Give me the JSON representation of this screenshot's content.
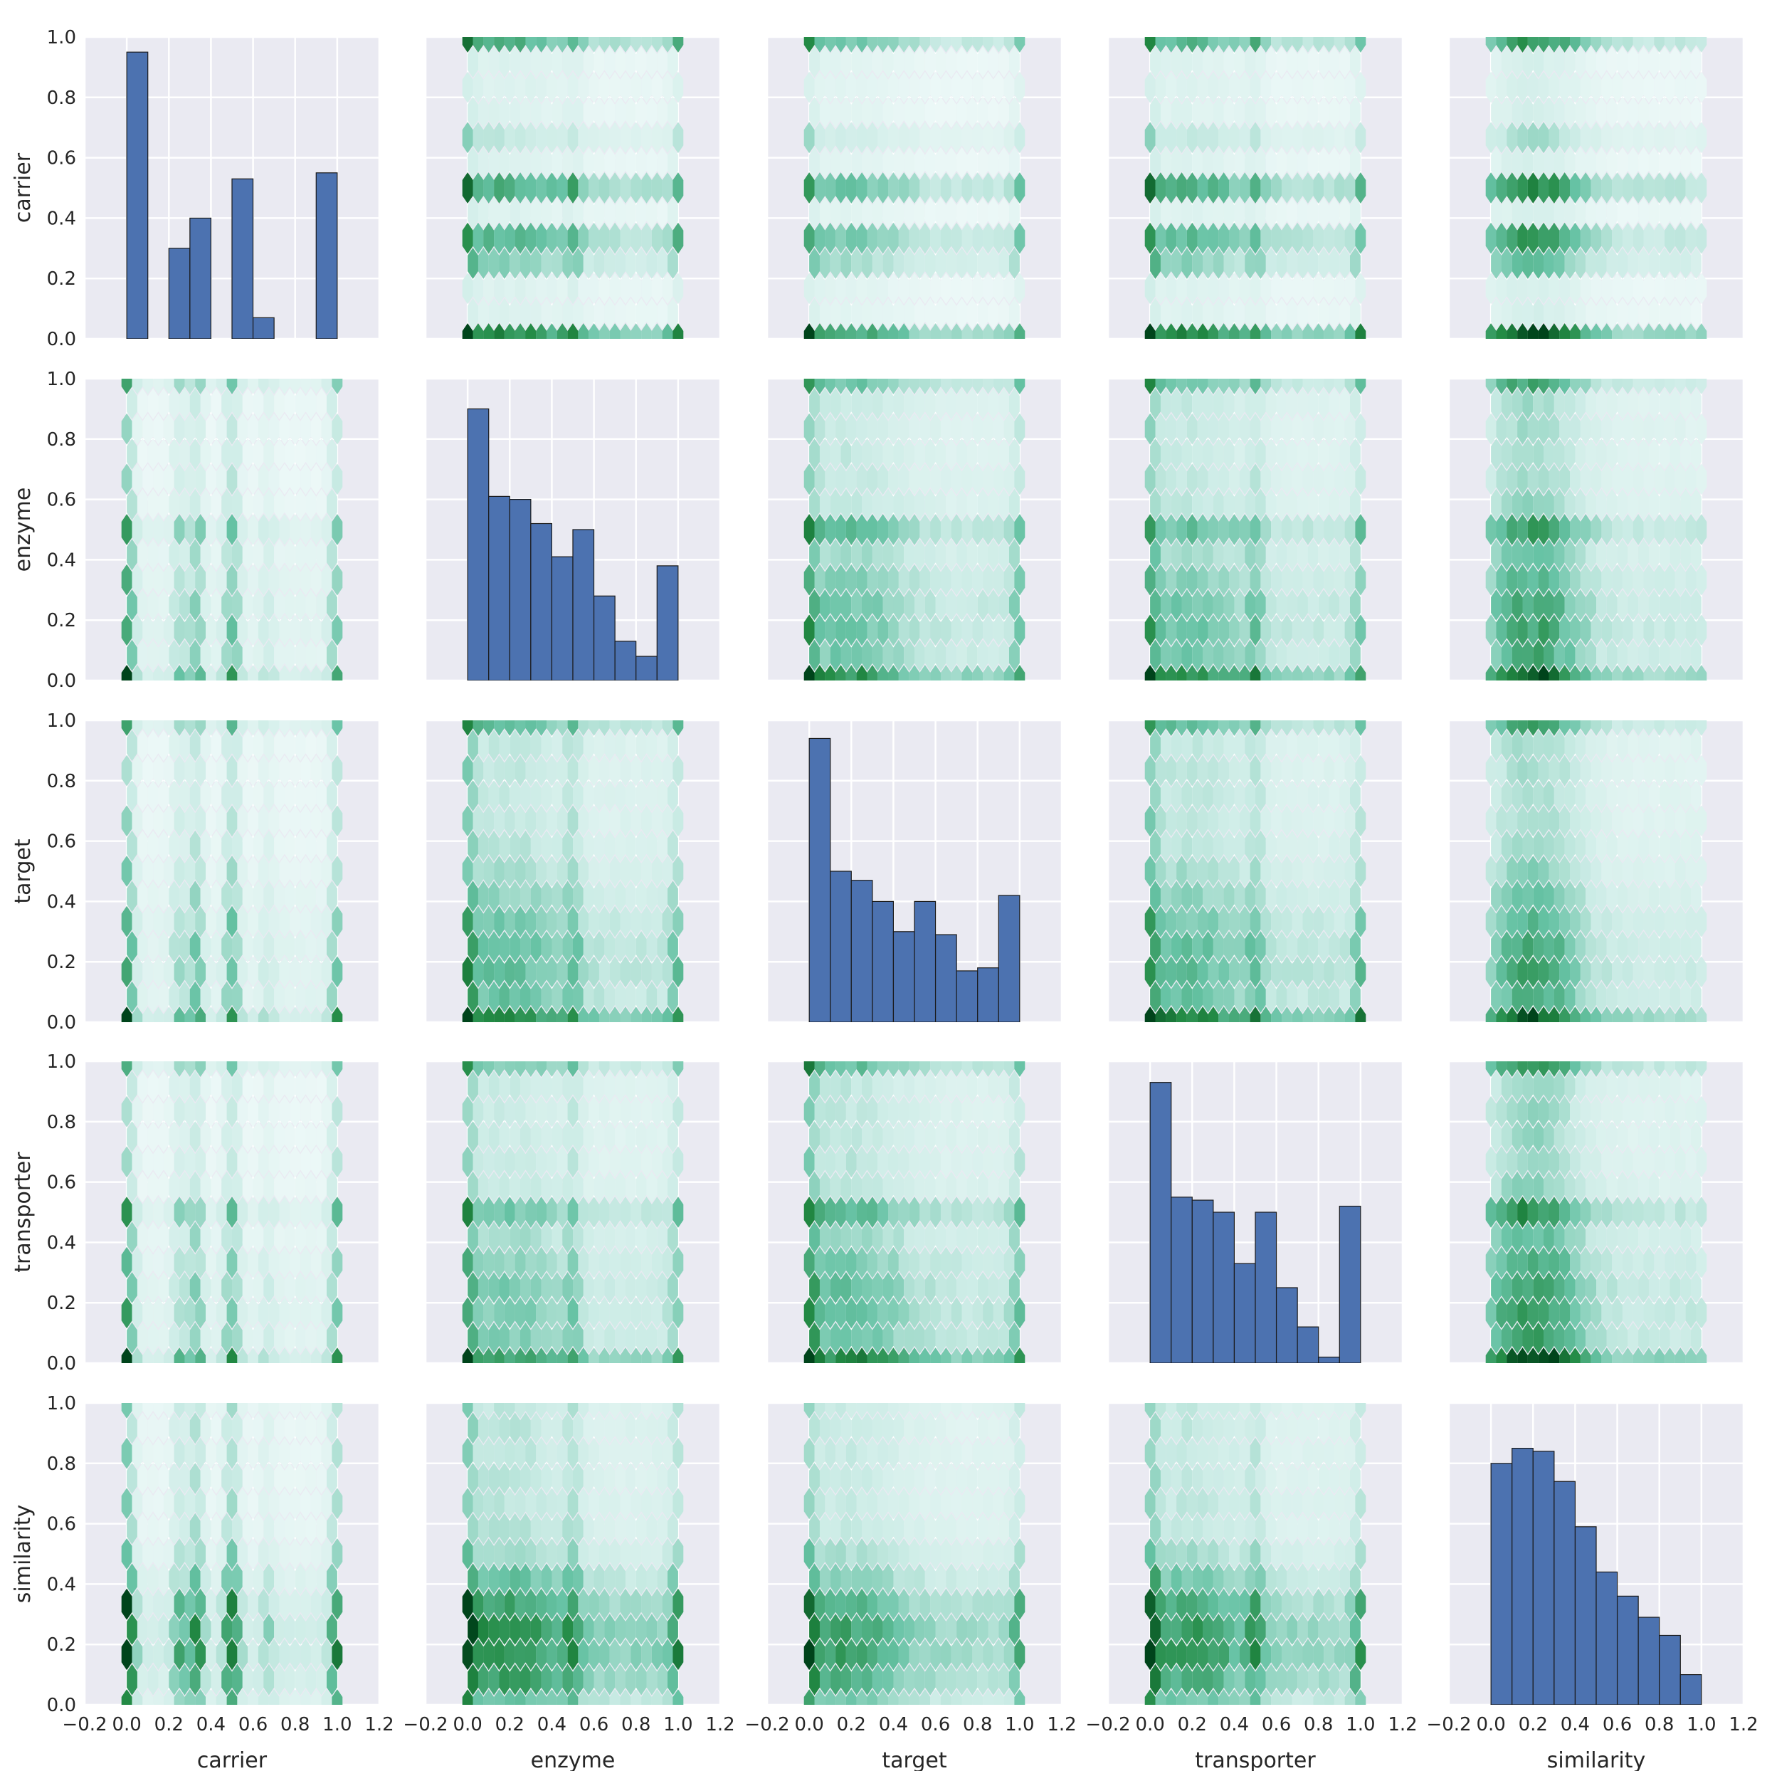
{
  "chart_data": {
    "type": "pairgrid",
    "style": "seaborn darkgrid",
    "variables": [
      "carrier",
      "enzyme",
      "target",
      "transporter",
      "similarity"
    ],
    "diagonal": "histogram",
    "off_diagonal": "hexbin",
    "hist_color": "#4c72b0",
    "hexbin_colormap": [
      "#f7fcfd",
      "#ccece6",
      "#66c2a4",
      "#238b45",
      "#00441b"
    ],
    "background_color": "#eaeaf2",
    "grid": true,
    "xlim": [
      -0.2,
      1.2
    ],
    "ylim": [
      0.0,
      1.0
    ],
    "x_ticks": [
      "−0.2",
      "0.0",
      "0.2",
      "0.4",
      "0.6",
      "0.8",
      "1.0",
      "1.2"
    ],
    "x_tick_values": [
      -0.2,
      0.0,
      0.2,
      0.4,
      0.6,
      0.8,
      1.0,
      1.2
    ],
    "y_ticks": [
      "0.0",
      "0.2",
      "0.4",
      "0.6",
      "0.8",
      "1.0"
    ],
    "y_tick_values": [
      0.0,
      0.2,
      0.4,
      0.6,
      0.8,
      1.0
    ],
    "histograms": {
      "carrier": [
        {
          "x0": 0.0,
          "x1": 0.1,
          "h": 0.95
        },
        {
          "x0": 0.2,
          "x1": 0.3,
          "h": 0.3
        },
        {
          "x0": 0.3,
          "x1": 0.4,
          "h": 0.4
        },
        {
          "x0": 0.5,
          "x1": 0.6,
          "h": 0.53
        },
        {
          "x0": 0.6,
          "x1": 0.7,
          "h": 0.07
        },
        {
          "x0": 0.9,
          "x1": 1.0,
          "h": 0.55
        }
      ],
      "enzyme": [
        {
          "x0": 0.0,
          "x1": 0.1,
          "h": 0.9
        },
        {
          "x0": 0.1,
          "x1": 0.2,
          "h": 0.61
        },
        {
          "x0": 0.2,
          "x1": 0.3,
          "h": 0.6
        },
        {
          "x0": 0.3,
          "x1": 0.4,
          "h": 0.52
        },
        {
          "x0": 0.4,
          "x1": 0.5,
          "h": 0.41
        },
        {
          "x0": 0.5,
          "x1": 0.6,
          "h": 0.5
        },
        {
          "x0": 0.6,
          "x1": 0.7,
          "h": 0.28
        },
        {
          "x0": 0.7,
          "x1": 0.8,
          "h": 0.13
        },
        {
          "x0": 0.8,
          "x1": 0.9,
          "h": 0.08
        },
        {
          "x0": 0.9,
          "x1": 1.0,
          "h": 0.38
        }
      ],
      "target": [
        {
          "x0": 0.0,
          "x1": 0.1,
          "h": 0.94
        },
        {
          "x0": 0.1,
          "x1": 0.2,
          "h": 0.5
        },
        {
          "x0": 0.2,
          "x1": 0.3,
          "h": 0.47
        },
        {
          "x0": 0.3,
          "x1": 0.4,
          "h": 0.4
        },
        {
          "x0": 0.4,
          "x1": 0.5,
          "h": 0.3
        },
        {
          "x0": 0.5,
          "x1": 0.6,
          "h": 0.4
        },
        {
          "x0": 0.6,
          "x1": 0.7,
          "h": 0.29
        },
        {
          "x0": 0.7,
          "x1": 0.8,
          "h": 0.17
        },
        {
          "x0": 0.8,
          "x1": 0.9,
          "h": 0.18
        },
        {
          "x0": 0.9,
          "x1": 1.0,
          "h": 0.42
        }
      ],
      "transporter": [
        {
          "x0": 0.0,
          "x1": 0.1,
          "h": 0.93
        },
        {
          "x0": 0.1,
          "x1": 0.2,
          "h": 0.55
        },
        {
          "x0": 0.2,
          "x1": 0.3,
          "h": 0.54
        },
        {
          "x0": 0.3,
          "x1": 0.4,
          "h": 0.5
        },
        {
          "x0": 0.4,
          "x1": 0.5,
          "h": 0.33
        },
        {
          "x0": 0.5,
          "x1": 0.6,
          "h": 0.5
        },
        {
          "x0": 0.6,
          "x1": 0.7,
          "h": 0.25
        },
        {
          "x0": 0.7,
          "x1": 0.8,
          "h": 0.12
        },
        {
          "x0": 0.8,
          "x1": 0.9,
          "h": 0.02
        },
        {
          "x0": 0.9,
          "x1": 1.0,
          "h": 0.52
        }
      ],
      "similarity": [
        {
          "x0": 0.0,
          "x1": 0.1,
          "h": 0.8
        },
        {
          "x0": 0.1,
          "x1": 0.2,
          "h": 0.85
        },
        {
          "x0": 0.2,
          "x1": 0.3,
          "h": 0.84
        },
        {
          "x0": 0.3,
          "x1": 0.4,
          "h": 0.74
        },
        {
          "x0": 0.4,
          "x1": 0.5,
          "h": 0.59
        },
        {
          "x0": 0.5,
          "x1": 0.6,
          "h": 0.44
        },
        {
          "x0": 0.6,
          "x1": 0.7,
          "h": 0.36
        },
        {
          "x0": 0.7,
          "x1": 0.8,
          "h": 0.29
        },
        {
          "x0": 0.8,
          "x1": 0.9,
          "h": 0.23
        },
        {
          "x0": 0.9,
          "x1": 1.0,
          "h": 0.1
        }
      ]
    }
  }
}
